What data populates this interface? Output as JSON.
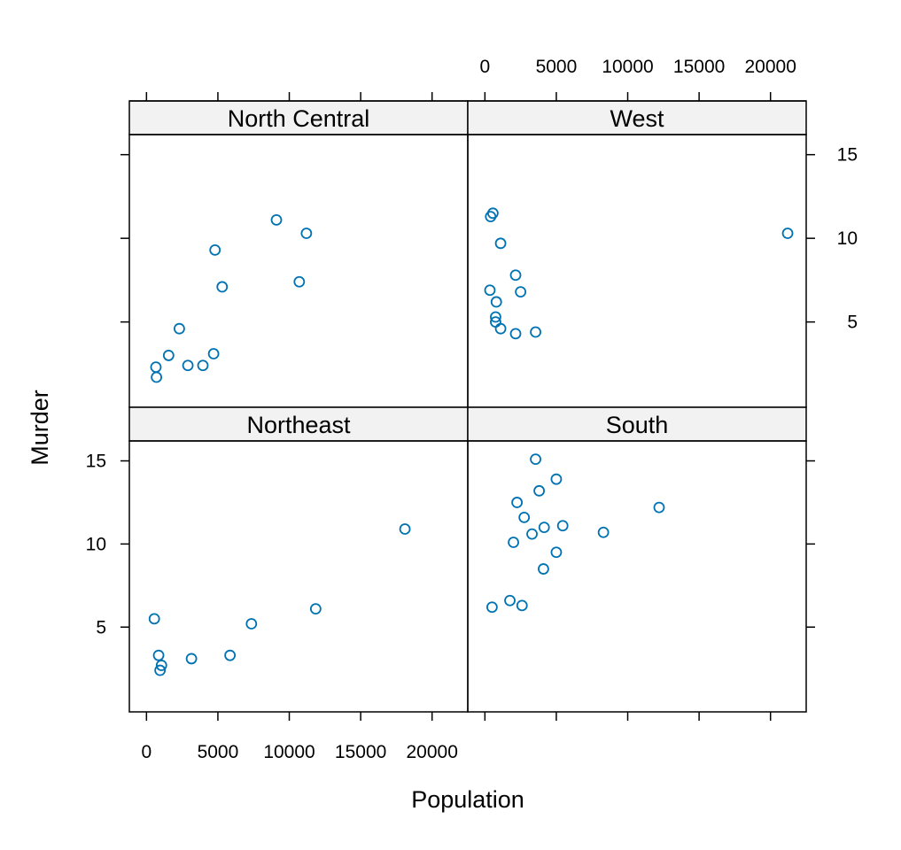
{
  "chart_data": {
    "type": "scatter",
    "layout": "2x2 trellis (lattice xyplot)",
    "xlabel": "Population",
    "ylabel": "Murder",
    "xlim": [
      -1200,
      22500
    ],
    "ylim": [
      -0.1,
      16.2
    ],
    "x_ticks": [
      0,
      5000,
      10000,
      15000,
      20000
    ],
    "y_ticks": [
      5,
      10,
      15
    ],
    "grid": false,
    "point_color": "#0072B2",
    "strip_color": "#f2f2f2",
    "panels": [
      {
        "name": "North Central",
        "points": [
          {
            "x": 660,
            "y": 2.3
          },
          {
            "x": 700,
            "y": 1.7
          },
          {
            "x": 1550,
            "y": 3.0
          },
          {
            "x": 2300,
            "y": 4.6
          },
          {
            "x": 2900,
            "y": 2.4
          },
          {
            "x": 3950,
            "y": 2.4
          },
          {
            "x": 4700,
            "y": 3.1
          },
          {
            "x": 4800,
            "y": 9.3
          },
          {
            "x": 5300,
            "y": 7.1
          },
          {
            "x": 9100,
            "y": 11.1
          },
          {
            "x": 10700,
            "y": 7.4
          },
          {
            "x": 11200,
            "y": 10.3
          }
        ]
      },
      {
        "name": "West",
        "points": [
          {
            "x": 400,
            "y": 11.3
          },
          {
            "x": 560,
            "y": 11.5
          },
          {
            "x": 350,
            "y": 6.9
          },
          {
            "x": 800,
            "y": 6.2
          },
          {
            "x": 750,
            "y": 5.3
          },
          {
            "x": 750,
            "y": 5.0
          },
          {
            "x": 1100,
            "y": 4.6
          },
          {
            "x": 1100,
            "y": 9.7
          },
          {
            "x": 2150,
            "y": 7.8
          },
          {
            "x": 2150,
            "y": 4.3
          },
          {
            "x": 2500,
            "y": 6.8
          },
          {
            "x": 3550,
            "y": 4.4
          },
          {
            "x": 21200,
            "y": 10.3
          }
        ]
      },
      {
        "name": "Northeast",
        "points": [
          {
            "x": 550,
            "y": 5.5
          },
          {
            "x": 850,
            "y": 3.3
          },
          {
            "x": 950,
            "y": 2.4
          },
          {
            "x": 1050,
            "y": 2.7
          },
          {
            "x": 3150,
            "y": 3.1
          },
          {
            "x": 5850,
            "y": 3.3
          },
          {
            "x": 7350,
            "y": 5.2
          },
          {
            "x": 11850,
            "y": 6.1
          },
          {
            "x": 18100,
            "y": 10.9
          }
        ]
      },
      {
        "name": "South",
        "points": [
          {
            "x": 500,
            "y": 6.2
          },
          {
            "x": 1750,
            "y": 6.6
          },
          {
            "x": 2000,
            "y": 10.1
          },
          {
            "x": 2250,
            "y": 12.5
          },
          {
            "x": 2600,
            "y": 6.3
          },
          {
            "x": 2750,
            "y": 11.6
          },
          {
            "x": 3300,
            "y": 10.6
          },
          {
            "x": 3550,
            "y": 15.1
          },
          {
            "x": 3800,
            "y": 13.2
          },
          {
            "x": 4150,
            "y": 11.0
          },
          {
            "x": 4100,
            "y": 8.5
          },
          {
            "x": 5000,
            "y": 13.9
          },
          {
            "x": 5000,
            "y": 9.5
          },
          {
            "x": 5450,
            "y": 11.1
          },
          {
            "x": 8300,
            "y": 10.7
          },
          {
            "x": 12200,
            "y": 12.2
          }
        ]
      }
    ]
  }
}
